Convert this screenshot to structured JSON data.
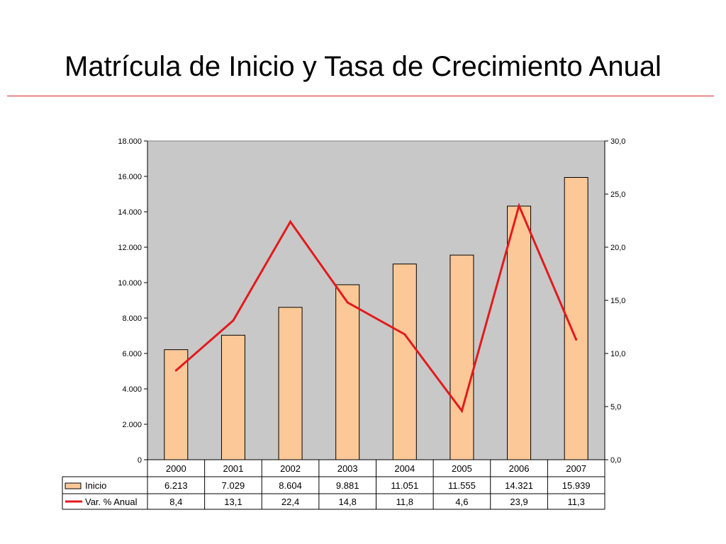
{
  "slide": {
    "title": "Matrícula de Inicio y Tasa de Crecimiento Anual"
  },
  "colors": {
    "bar_fill": "#fcc897",
    "bar_stroke": "#000000",
    "line": "#e31a1c",
    "plot_bg": "#c8c8c8",
    "rule": "#d42a2a"
  },
  "chart_data": {
    "type": "bar",
    "combo": "bar+line (secondary axis)",
    "categories": [
      "2000",
      "2001",
      "2002",
      "2003",
      "2004",
      "2005",
      "2006",
      "2007"
    ],
    "series": [
      {
        "name": "Inicio",
        "type": "bar",
        "axis": "left",
        "values": [
          6213,
          7029,
          8604,
          9881,
          11051,
          11555,
          14321,
          15939
        ],
        "labels": [
          "6.213",
          "7.029",
          "8.604",
          "9.881",
          "11.051",
          "11.555",
          "14.321",
          "15.939"
        ]
      },
      {
        "name": "Var. % Anual",
        "type": "line",
        "axis": "right",
        "values": [
          8.4,
          13.1,
          22.4,
          14.8,
          11.8,
          4.6,
          23.9,
          11.3
        ],
        "labels": [
          "8,4",
          "13,1",
          "22,4",
          "14,8",
          "11,8",
          "4,6",
          "23,9",
          "11,3"
        ]
      }
    ],
    "y_left": {
      "ylim": [
        0,
        18000
      ],
      "ticks": [
        0,
        2000,
        4000,
        6000,
        8000,
        10000,
        12000,
        14000,
        16000,
        18000
      ],
      "tick_labels": [
        "0",
        "2.000",
        "4.000",
        "6.000",
        "8.000",
        "10.000",
        "12.000",
        "14.000",
        "16.000",
        "18.000"
      ]
    },
    "y_right": {
      "ylim": [
        0,
        30
      ],
      "ticks": [
        0,
        5,
        10,
        15,
        20,
        25,
        30
      ],
      "tick_labels": [
        "0,0",
        "5,0",
        "10,0",
        "15,0",
        "20,0",
        "25,0",
        "30,0"
      ]
    },
    "grid": false,
    "legend": "data-table"
  }
}
